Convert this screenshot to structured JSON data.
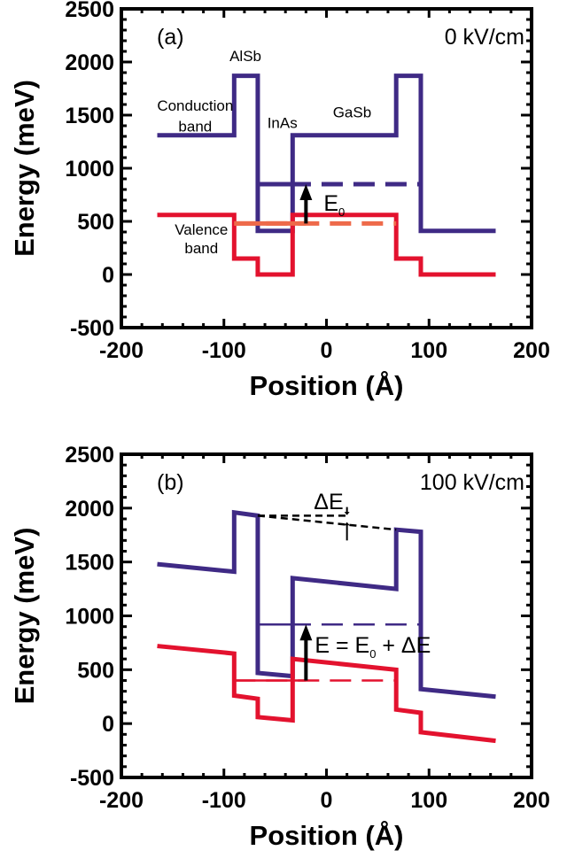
{
  "chart_data": [
    {
      "type": "line",
      "panel_label": "(a)",
      "field_label": "0 kV/cm",
      "xlabel": "Position (Å)",
      "ylabel": "Energy (meV)",
      "xlim": [
        -200,
        200
      ],
      "ylim": [
        -500,
        2500
      ],
      "xticks": [
        -200,
        -100,
        0,
        100,
        200
      ],
      "yticks": [
        -500,
        0,
        500,
        1000,
        1500,
        2000,
        2500
      ],
      "layer_labels": [
        "AlSb",
        "InAs",
        "GaSb"
      ],
      "band_labels": [
        "Conduction\nband",
        "Valence\nband"
      ],
      "series": [
        {
          "id": "conduction",
          "color": "#3f2a85",
          "x": [
            -165,
            -90,
            -90,
            -67,
            -67,
            -33,
            -33,
            68,
            68,
            92,
            92,
            165
          ],
          "y": [
            1310,
            1310,
            1870,
            1870,
            410,
            410,
            1310,
            1310,
            1870,
            1870,
            410,
            410
          ]
        },
        {
          "id": "valence",
          "color": "#e3122e",
          "x": [
            -165,
            -90,
            -90,
            -67,
            -67,
            -33,
            -33,
            68,
            68,
            92,
            92,
            165
          ],
          "y": [
            560,
            560,
            150,
            150,
            0,
            0,
            560,
            560,
            150,
            150,
            0,
            0
          ]
        }
      ],
      "levels": [
        {
          "id": "electron",
          "color": "#3f2a85",
          "x": [
            -67,
            92
          ],
          "y": 850
        },
        {
          "id": "hole",
          "color": "#ee6a4a",
          "x": [
            -90,
            68
          ],
          "y": 480
        }
      ],
      "arrow": {
        "x": -20,
        "from": 480,
        "to": 850,
        "label": "E",
        "sub": "0"
      }
    },
    {
      "type": "line",
      "panel_label": "(b)",
      "field_label": "100 kV/cm",
      "xlabel": "Position (Å)",
      "ylabel": "Energy (meV)",
      "xlim": [
        -200,
        200
      ],
      "ylim": [
        -500,
        2500
      ],
      "xticks": [
        -200,
        -100,
        0,
        100,
        200
      ],
      "yticks": [
        -500,
        0,
        500,
        1000,
        1500,
        2000,
        2500
      ],
      "series": [
        {
          "id": "conduction",
          "color": "#3f2a85",
          "x": [
            -165,
            -90,
            -90,
            -67,
            -67,
            -33,
            -33,
            68,
            68,
            92,
            92,
            165
          ],
          "y": [
            1480,
            1410,
            1960,
            1930,
            470,
            440,
            1350,
            1250,
            1800,
            1780,
            320,
            250
          ]
        },
        {
          "id": "valence",
          "color": "#e3122e",
          "x": [
            -165,
            -90,
            -90,
            -67,
            -67,
            -33,
            -33,
            68,
            68,
            92,
            92,
            165
          ],
          "y": [
            720,
            650,
            260,
            230,
            60,
            30,
            600,
            500,
            130,
            100,
            -80,
            -160
          ]
        }
      ],
      "levels": [
        {
          "id": "electron",
          "color": "#3f2a85",
          "x": [
            -67,
            92
          ],
          "y": 920
        },
        {
          "id": "hole",
          "color": "#e3122e",
          "x": [
            -90,
            68
          ],
          "y": 400
        }
      ],
      "barrier_line": {
        "x": [
          -67,
          68
        ],
        "y": [
          1930,
          1800
        ]
      },
      "reference_line": {
        "x": [
          -67,
          20
        ],
        "y": 1930
      },
      "delta_label": "ΔE",
      "arrow": {
        "x": -20,
        "from": 400,
        "to": 920,
        "label": "E = E",
        "sub": "0",
        "label_tail": " + ΔE"
      }
    }
  ]
}
